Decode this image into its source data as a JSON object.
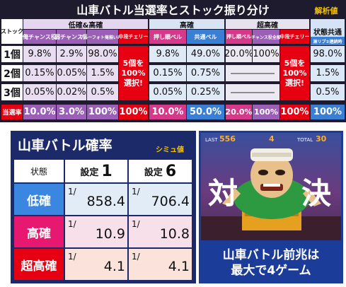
{
  "top": {
    "title": "山車バトル当選率とストック振り分け",
    "badge": "解析値",
    "stock_label": "ストック",
    "groups": [
      "低確&高確",
      "高確",
      "超高確",
      "状態共通"
    ],
    "subheaders": [
      "俺チャンス役",
      "弱チャンス目",
      "ブルーフォト俺揃い以外",
      "中段チェリー",
      "押し順ベル",
      "共通ベル",
      "押し順ベル",
      "チャンス役全般",
      "中段チェリー",
      "淋リプ②連続時"
    ],
    "rows": [
      {
        "label": "1個",
        "cells": [
          "9.8%",
          "2.9%",
          "98.0%",
          "9.8%",
          "49.0%",
          "20.0%",
          "100%",
          "98.0%"
        ]
      },
      {
        "label": "2個",
        "cells": [
          "0.15%",
          "0.05%",
          "1.5%",
          "0.15%",
          "0.75%",
          "1.5%"
        ]
      },
      {
        "label": "3個",
        "cells": [
          "0.05%",
          "0.02%",
          "0.5%",
          "0.05%",
          "0.25%",
          "0.5%"
        ]
      }
    ],
    "note_low": "5個を100%選択!",
    "note_super": "5個を100%選択!",
    "total_label": "当選率",
    "totals": [
      "10.0%",
      "3.0%",
      "100%",
      "100%",
      "10.0%",
      "50.0%",
      "20.0%",
      "100%",
      "100%",
      "100%"
    ]
  },
  "prob": {
    "title": "山車バトル確率",
    "badge": "シミュ値",
    "state_label": "状態",
    "setting_label": "設定",
    "setting_1": "1",
    "setting_6": "6",
    "rows": [
      {
        "state": "低確",
        "v1": "858.4",
        "v6": "706.4"
      },
      {
        "state": "高確",
        "v1": "10.9",
        "v6": "10.8"
      },
      {
        "state": "超高確",
        "v1": "4.1",
        "v6": "4.1"
      }
    ],
    "fraction_mark": "1/"
  },
  "scene": {
    "hud_left": "LAST",
    "hud_left_num": "556",
    "hud_mid": "4",
    "hud_right": "TOTAL",
    "hud_right_num": "30",
    "word_left": "対",
    "word_right": "決"
  },
  "caption": {
    "line1": "山車バトル前兆は",
    "line2": "最大で4ゲーム"
  },
  "colors": {
    "low_bg": "#e8ddf1",
    "high_bg": "#e0e9f6",
    "super_bg": "#ece9f2",
    "common_bg": "#dbe8f7",
    "red": "#e60012",
    "row_low": "#3a86e0",
    "row_high": "#e6186f",
    "row_super": "#e60012"
  }
}
